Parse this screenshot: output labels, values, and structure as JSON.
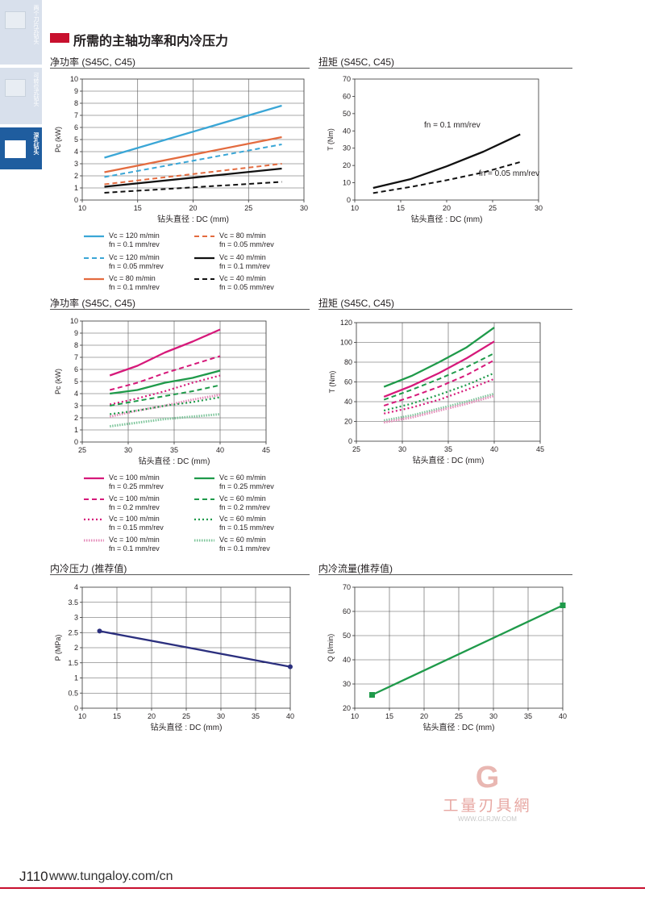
{
  "side_tabs": [
    {
      "label": "两个刀片式钻头"
    },
    {
      "label": "可转位式钻头"
    },
    {
      "label": "深孔钻头"
    }
  ],
  "section_title": "所需的主轴功率和内冷压力",
  "panels": {
    "p1": {
      "title": "净功率 (S45C, C45)"
    },
    "p2": {
      "title": "扭矩 (S45C, C45)"
    },
    "p3": {
      "title": "净功率 (S45C, C45)"
    },
    "p4": {
      "title": "扭矩 (S45C, C45)"
    },
    "p5": {
      "title": "内冷压力 (推荐值)"
    },
    "p6": {
      "title": "内冷流量(推荐值)"
    }
  },
  "legends": {
    "l1": [
      {
        "line1": "Vc = 120 m/min",
        "line2": "fn = 0.1 mm/rev",
        "color": "#3aa6d6",
        "dash": "solid"
      },
      {
        "line1": "Vc = 80 m/min",
        "line2": "fn = 0.05 mm/rev",
        "color": "#e36b3f",
        "dash": "dashed"
      },
      {
        "line1": "Vc = 120 m/min",
        "line2": "fn = 0.05 mm/rev",
        "color": "#3aa6d6",
        "dash": "dashed"
      },
      {
        "line1": "Vc = 40 m/min",
        "line2": "fn = 0.1 mm/rev",
        "color": "#111111",
        "dash": "solid"
      },
      {
        "line1": "Vc = 80 m/min",
        "line2": "fn = 0.1 mm/rev",
        "color": "#e36b3f",
        "dash": "solid"
      },
      {
        "line1": "Vc = 40 m/min",
        "line2": "fn = 0.05 mm/rev",
        "color": "#111111",
        "dash": "dashed"
      }
    ],
    "l2": [
      {
        "line1": "Vc = 100 m/min",
        "line2": "fn = 0.25 mm/rev",
        "color": "#d6197a",
        "dash": "solid"
      },
      {
        "line1": "Vc = 60 m/min",
        "line2": "fn = 0.25 mm/rev",
        "color": "#1f9a4a",
        "dash": "solid"
      },
      {
        "line1": "Vc = 100 m/min",
        "line2": "fn = 0.2 mm/rev",
        "color": "#d6197a",
        "dash": "dashed"
      },
      {
        "line1": "Vc = 60 m/min",
        "line2": "fn = 0.2 mm/rev",
        "color": "#1f9a4a",
        "dash": "dashed"
      },
      {
        "line1": "Vc = 100 m/min",
        "line2": "fn = 0.15 mm/rev",
        "color": "#d6197a",
        "dash": "dotted"
      },
      {
        "line1": "Vc = 60 m/min",
        "line2": "fn = 0.15 mm/rev",
        "color": "#1f9a4a",
        "dash": "dotted"
      },
      {
        "line1": "Vc = 100 m/min",
        "line2": "fn = 0.1 mm/rev",
        "color": "#e48bb9",
        "dash": "hatched"
      },
      {
        "line1": "Vc = 60 m/min",
        "line2": "fn = 0.1 mm/rev",
        "color": "#7cc59a",
        "dash": "hatched"
      }
    ]
  },
  "chart_data": [
    {
      "type": "line",
      "title": "净功率 (S45C, C45)",
      "xlabel": "钻头直径 : DC (mm)",
      "ylabel": "Pc (kW)",
      "xlim": [
        10,
        30
      ],
      "ylim": [
        0,
        10
      ],
      "xticks": [
        10,
        15,
        20,
        25,
        30
      ],
      "yticks": [
        0,
        1,
        2,
        3,
        4,
        5,
        6,
        7,
        8,
        9,
        10
      ],
      "grid": true,
      "series": [
        {
          "name": "Vc = 120 m/min, fn = 0.1 mm/rev",
          "color": "#3aa6d6",
          "dash": "solid",
          "points": [
            [
              12,
              3.5
            ],
            [
              28,
              7.8
            ]
          ]
        },
        {
          "name": "Vc = 120 m/min, fn = 0.05 mm/rev",
          "color": "#3aa6d6",
          "dash": "dashed",
          "points": [
            [
              12,
              1.9
            ],
            [
              28,
              4.6
            ]
          ]
        },
        {
          "name": "Vc = 80 m/min, fn = 0.1 mm/rev",
          "color": "#e36b3f",
          "dash": "solid",
          "points": [
            [
              12,
              2.3
            ],
            [
              28,
              5.2
            ]
          ]
        },
        {
          "name": "Vc = 80 m/min, fn = 0.05 mm/rev",
          "color": "#e36b3f",
          "dash": "dashed",
          "points": [
            [
              12,
              1.3
            ],
            [
              28,
              3.0
            ]
          ]
        },
        {
          "name": "Vc = 40 m/min, fn = 0.1 mm/rev",
          "color": "#111111",
          "dash": "solid",
          "points": [
            [
              12,
              1.1
            ],
            [
              28,
              2.6
            ]
          ]
        },
        {
          "name": "Vc = 40 m/min, fn = 0.05 mm/rev",
          "color": "#111111",
          "dash": "dashed",
          "points": [
            [
              12,
              0.6
            ],
            [
              28,
              1.5
            ]
          ]
        }
      ]
    },
    {
      "type": "line",
      "title": "扭矩 (S45C, C45)",
      "xlabel": "钻头直径 : DC (mm)",
      "ylabel": "T (Nm)",
      "xlim": [
        10,
        30
      ],
      "ylim": [
        0,
        70
      ],
      "xticks": [
        10,
        15,
        20,
        25,
        30
      ],
      "yticks": [
        0,
        10,
        20,
        30,
        40,
        50,
        60,
        70
      ],
      "grid": false,
      "annotations": [
        {
          "text": "fn = 0.1 mm/rev",
          "x": 20.6,
          "y": 42
        },
        {
          "text": "fn = 0.05 mm/rev",
          "x": 26.8,
          "y": 14
        }
      ],
      "series": [
        {
          "name": "fn = 0.1 mm/rev",
          "color": "#111111",
          "dash": "solid",
          "points": [
            [
              12,
              7
            ],
            [
              16,
              12
            ],
            [
              20,
              19.5
            ],
            [
              24,
              28
            ],
            [
              28,
              38
            ]
          ]
        },
        {
          "name": "fn = 0.05 mm/rev",
          "color": "#111111",
          "dash": "dashed",
          "points": [
            [
              12,
              4
            ],
            [
              16,
              7.5
            ],
            [
              20,
              11.5
            ],
            [
              24,
              16
            ],
            [
              28,
              22
            ]
          ]
        }
      ]
    },
    {
      "type": "line",
      "title": "净功率 (S45C, C45)",
      "xlabel": "钻头直径 : DC (mm)",
      "ylabel": "Pc (kW)",
      "xlim": [
        25,
        45
      ],
      "ylim": [
        0,
        10
      ],
      "xticks": [
        25,
        30,
        35,
        40,
        45
      ],
      "yticks": [
        0,
        1,
        2,
        3,
        4,
        5,
        6,
        7,
        8,
        9,
        10
      ],
      "grid": true,
      "series": [
        {
          "name": "Vc = 100 m/min, fn = 0.25 mm/rev",
          "color": "#d6197a",
          "dash": "solid",
          "points": [
            [
              28,
              5.5
            ],
            [
              31,
              6.3
            ],
            [
              34,
              7.4
            ],
            [
              37,
              8.3
            ],
            [
              40,
              9.3
            ]
          ]
        },
        {
          "name": "Vc = 100 m/min, fn = 0.2 mm/rev",
          "color": "#d6197a",
          "dash": "dashed",
          "points": [
            [
              28,
              4.3
            ],
            [
              31,
              4.9
            ],
            [
              34,
              5.7
            ],
            [
              37,
              6.4
            ],
            [
              40,
              7.1
            ]
          ]
        },
        {
          "name": "Vc = 100 m/min, fn = 0.15 mm/rev",
          "color": "#d6197a",
          "dash": "dotted",
          "points": [
            [
              28,
              3.1
            ],
            [
              31,
              3.6
            ],
            [
              34,
              4.2
            ],
            [
              37,
              4.9
            ],
            [
              40,
              5.5
            ]
          ]
        },
        {
          "name": "Vc = 100 m/min, fn = 0.1 mm/rev",
          "color": "#e48bb9",
          "dash": "hatched",
          "points": [
            [
              28,
              2.1
            ],
            [
              31,
              2.6
            ],
            [
              34,
              3.0
            ],
            [
              37,
              3.5
            ],
            [
              40,
              3.9
            ]
          ]
        },
        {
          "name": "Vc = 60 m/min, fn = 0.25 mm/rev",
          "color": "#1f9a4a",
          "dash": "solid",
          "points": [
            [
              28,
              4.0
            ],
            [
              31,
              4.3
            ],
            [
              34,
              4.9
            ],
            [
              37,
              5.3
            ],
            [
              40,
              5.9
            ]
          ]
        },
        {
          "name": "Vc = 60 m/min, fn = 0.2 mm/rev",
          "color": "#1f9a4a",
          "dash": "dashed",
          "points": [
            [
              28,
              3.0
            ],
            [
              31,
              3.4
            ],
            [
              34,
              3.8
            ],
            [
              37,
              4.2
            ],
            [
              40,
              4.7
            ]
          ]
        },
        {
          "name": "Vc = 60 m/min, fn = 0.15 mm/rev",
          "color": "#1f9a4a",
          "dash": "dotted",
          "points": [
            [
              28,
              2.3
            ],
            [
              31,
              2.6
            ],
            [
              34,
              3.0
            ],
            [
              37,
              3.3
            ],
            [
              40,
              3.7
            ]
          ]
        },
        {
          "name": "Vc = 60 m/min, fn = 0.1 mm/rev",
          "color": "#7cc59a",
          "dash": "hatched",
          "points": [
            [
              28,
              1.3
            ],
            [
              31,
              1.6
            ],
            [
              34,
              1.9
            ],
            [
              37,
              2.1
            ],
            [
              40,
              2.3
            ]
          ]
        }
      ]
    },
    {
      "type": "line",
      "title": "扭矩 (S45C, C45)",
      "xlabel": "钻头直径 : DC (mm)",
      "ylabel": "T (Nm)",
      "xlim": [
        25,
        45
      ],
      "ylim": [
        0,
        120
      ],
      "xticks": [
        25,
        30,
        35,
        40,
        45
      ],
      "yticks": [
        0,
        20,
        40,
        60,
        80,
        100,
        120
      ],
      "grid": true,
      "series": [
        {
          "name": "Vc = 60 m/min, fn = 0.25 mm/rev",
          "color": "#1f9a4a",
          "dash": "solid",
          "points": [
            [
              28,
              55
            ],
            [
              31,
              66
            ],
            [
              34,
              80
            ],
            [
              37,
              95
            ],
            [
              40,
              115
            ]
          ]
        },
        {
          "name": "Vc = 100 m/min, fn = 0.25 mm/rev",
          "color": "#d6197a",
          "dash": "solid",
          "points": [
            [
              28,
              45
            ],
            [
              31,
              56
            ],
            [
              34,
              69
            ],
            [
              37,
              84
            ],
            [
              40,
              101
            ]
          ]
        },
        {
          "name": "Vc = 60 m/min, fn = 0.2 mm/rev",
          "color": "#1f9a4a",
          "dash": "dashed",
          "points": [
            [
              28,
              42
            ],
            [
              31,
              52
            ],
            [
              34,
              63
            ],
            [
              37,
              75
            ],
            [
              40,
              89
            ]
          ]
        },
        {
          "name": "Vc = 100 m/min, fn = 0.2 mm/rev",
          "color": "#d6197a",
          "dash": "dashed",
          "points": [
            [
              28,
              36
            ],
            [
              31,
              45
            ],
            [
              34,
              55
            ],
            [
              37,
              67
            ],
            [
              40,
              82
            ]
          ]
        },
        {
          "name": "Vc = 60 m/min, fn = 0.15 mm/rev",
          "color": "#1f9a4a",
          "dash": "dotted",
          "points": [
            [
              28,
              31
            ],
            [
              31,
              38
            ],
            [
              34,
              47
            ],
            [
              37,
              57
            ],
            [
              40,
              69
            ]
          ]
        },
        {
          "name": "Vc = 100 m/min, fn = 0.15 mm/rev",
          "color": "#d6197a",
          "dash": "dotted",
          "points": [
            [
              28,
              28
            ],
            [
              31,
              34
            ],
            [
              34,
              42
            ],
            [
              37,
              52
            ],
            [
              40,
              63
            ]
          ]
        },
        {
          "name": "Vc = 60 m/min, fn = 0.1 mm/rev",
          "color": "#7cc59a",
          "dash": "hatched",
          "points": [
            [
              28,
              21
            ],
            [
              31,
              26
            ],
            [
              34,
              33
            ],
            [
              37,
              40
            ],
            [
              40,
              48
            ]
          ]
        },
        {
          "name": "Vc = 100 m/min, fn = 0.1 mm/rev",
          "color": "#e48bb9",
          "dash": "hatched",
          "points": [
            [
              28,
              19
            ],
            [
              31,
              24
            ],
            [
              34,
              31
            ],
            [
              37,
              38
            ],
            [
              40,
              46
            ]
          ]
        }
      ]
    },
    {
      "type": "line",
      "title": "内冷压力 (推荐值)",
      "xlabel": "钻头直径 : DC (mm)",
      "ylabel": "P (MPa)",
      "xlim": [
        10,
        40
      ],
      "ylim": [
        0,
        4
      ],
      "xticks": [
        10,
        15,
        20,
        25,
        30,
        35,
        40
      ],
      "yticks": [
        0,
        0.5,
        1,
        1.5,
        2,
        2.5,
        3,
        3.5,
        4
      ],
      "grid": true,
      "series": [
        {
          "name": "",
          "color": "#2b2f7e",
          "dash": "solid",
          "marker": "circle",
          "points": [
            [
              12.5,
              2.55
            ],
            [
              40,
              1.37
            ]
          ]
        }
      ]
    },
    {
      "type": "line",
      "title": "内冷流量(推荐值)",
      "xlabel": "钻头直径 : DC (mm)",
      "ylabel": "Q (l/min)",
      "xlim": [
        10,
        40
      ],
      "ylim": [
        20,
        70
      ],
      "xticks": [
        10,
        15,
        20,
        25,
        30,
        35,
        40
      ],
      "yticks": [
        20,
        30,
        40,
        50,
        60,
        70
      ],
      "grid": true,
      "series": [
        {
          "name": "",
          "color": "#1f9a4a",
          "dash": "solid",
          "marker": "square",
          "points": [
            [
              12.5,
              25.5
            ],
            [
              40,
              62.5
            ]
          ]
        }
      ]
    }
  ],
  "watermark": {
    "logo": "G",
    "text": "工量刃具網",
    "url": "WWW.GLRJW.COM"
  },
  "footer": {
    "page": "J110",
    "url": "www.tungaloy.com/cn"
  }
}
